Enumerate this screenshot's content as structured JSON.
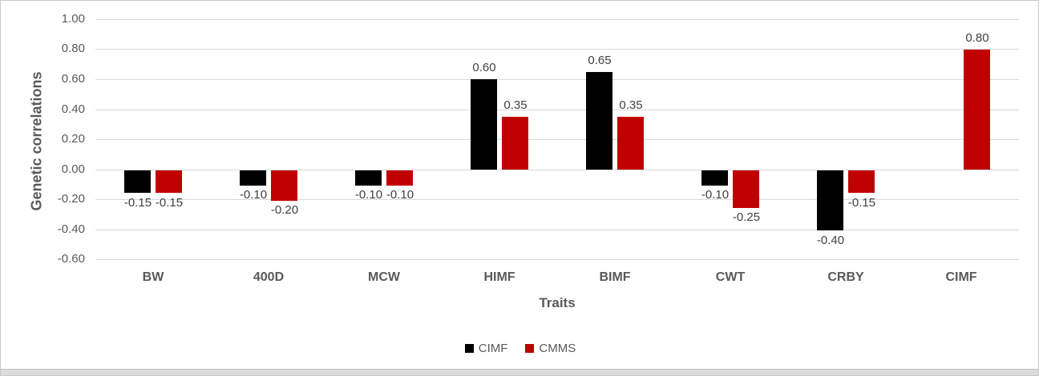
{
  "chart_data": {
    "type": "bar",
    "title": "",
    "xlabel": "Traits",
    "ylabel": "Genetic correlations",
    "categories": [
      "BW",
      "400D",
      "MCW",
      "HIMF",
      "BIMF",
      "CWT",
      "CRBY",
      "CIMF"
    ],
    "series": [
      {
        "name": "CIMF",
        "color": "#000000",
        "values": [
          -0.15,
          -0.1,
          -0.1,
          0.6,
          0.65,
          -0.1,
          -0.4,
          null
        ]
      },
      {
        "name": "CMMS",
        "color": "#C00000",
        "values": [
          -0.15,
          -0.2,
          -0.1,
          0.35,
          0.35,
          -0.25,
          -0.15,
          0.8
        ]
      }
    ],
    "ylim": [
      -0.6,
      1.0
    ],
    "ytick_step": 0.2,
    "ytick_labels": [
      "1.00",
      "0.80",
      "0.60",
      "0.40",
      "0.20",
      "0.00",
      "-0.20",
      "-0.40",
      "-0.60"
    ],
    "data_labels": "outside_end",
    "grid": true,
    "legend_position": "bottom"
  },
  "legend": {
    "items": [
      {
        "label": "CIMF",
        "color": "#000000"
      },
      {
        "label": "CMMS",
        "color": "#C00000"
      }
    ]
  },
  "colors": {
    "grid": "#d9d9d9",
    "axis_text": "#595959",
    "data_label_text": "#404040",
    "series_1": "#000000",
    "series_2": "#C00000",
    "bottom_strip": "#dcdcdc"
  }
}
